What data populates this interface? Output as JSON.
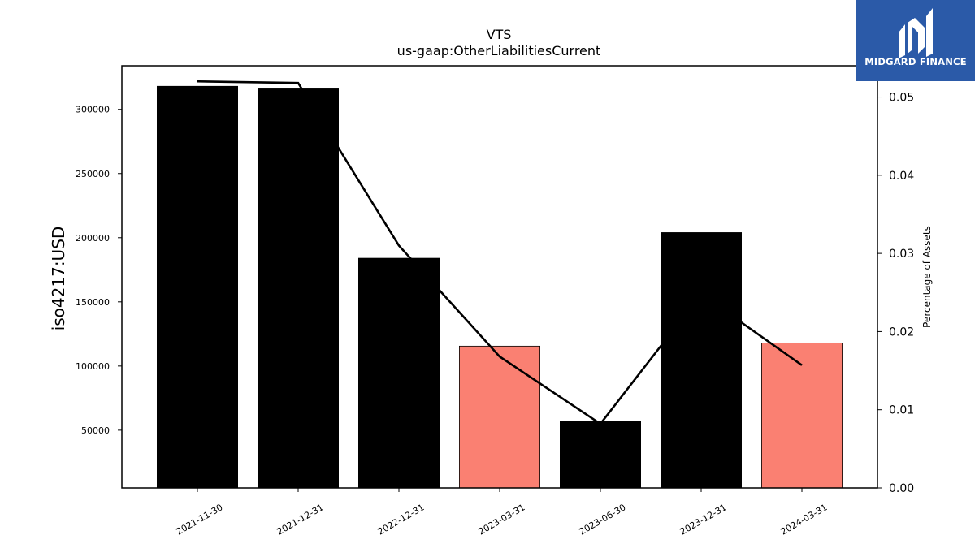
{
  "logo": {
    "text": "MIDGARD FINANCE",
    "background": "#2b5aa8"
  },
  "chart_data": {
    "type": "bar",
    "title": "VTS",
    "subtitle": "us-gaap:OtherLiabilitiesCurrent",
    "ylabel": "iso4217:USD",
    "y2label": "Percentage of Assets",
    "categories": [
      "2021-11-30",
      "2021-12-31",
      "2022-12-31",
      "2023-03-31",
      "2023-06-30",
      "2023-12-31",
      "2024-03-31"
    ],
    "values": [
      318000,
      316000,
      184000,
      115500,
      57000,
      204000,
      118000
    ],
    "bar_colors": [
      "#000000",
      "#000000",
      "#000000",
      "#fa8072",
      "#000000",
      "#000000",
      "#fa8072"
    ],
    "line_values": [
      0.052,
      0.0518,
      0.031,
      0.0168,
      0.0082,
      0.0248,
      0.0157
    ],
    "line_color": "#000000",
    "ylim": [
      5000,
      334000
    ],
    "y_ticks": [
      50000,
      100000,
      150000,
      200000,
      250000,
      300000
    ],
    "y_tick_labels": [
      "50000",
      "100000",
      "150000",
      "200000",
      "250000",
      "300000"
    ],
    "y2lim": [
      0,
      0.054
    ],
    "y2_ticks": [
      0,
      0.01,
      0.02,
      0.03,
      0.04,
      0.05
    ],
    "y2_tick_labels": [
      "0.00",
      "0.01",
      "0.02",
      "0.03",
      "0.04",
      "0.05"
    ],
    "grid": false
  }
}
